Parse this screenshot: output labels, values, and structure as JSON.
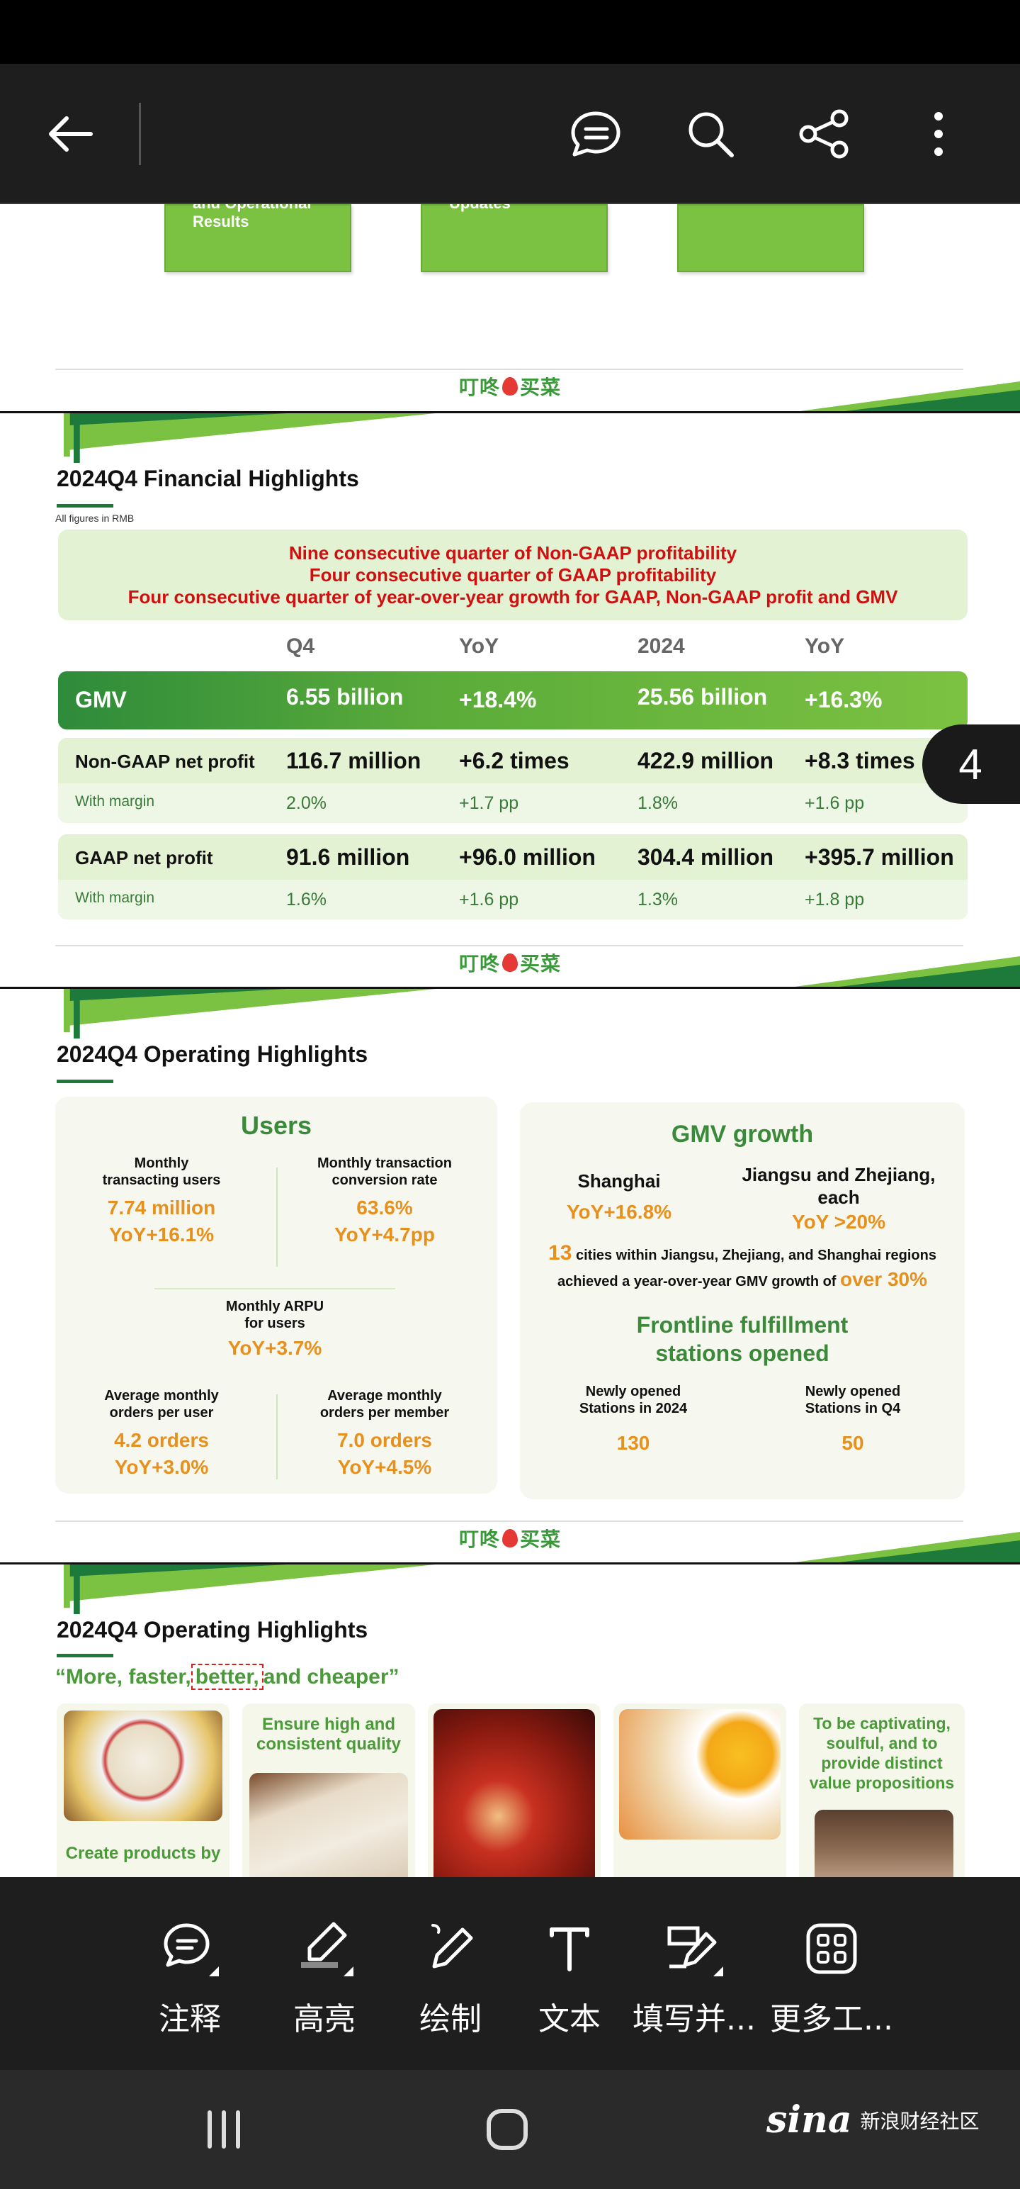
{
  "toolbar": {
    "back_icon": "arrow-left-icon",
    "comment_icon": "comment-icon",
    "search_icon": "search-icon",
    "share_icon": "share-icon",
    "more_icon": "more-vertical-icon"
  },
  "slide1": {
    "boxes": [
      "and Operational Results",
      "Updates",
      ""
    ]
  },
  "brand": {
    "logo_text_left": "叮咚",
    "logo_text_right": "买菜"
  },
  "slide2": {
    "title": "2024Q4 Financial Highlights",
    "note": "All figures in RMB",
    "banner": [
      "Nine consecutive quarter of Non-GAAP profitability",
      "Four consecutive quarter of GAAP profitability",
      "Four consecutive quarter of year-over-year growth for GAAP, Non-GAAP profit and GMV"
    ],
    "columns": [
      "Q4",
      "YoY",
      "2024",
      "YoY"
    ],
    "gmv": {
      "label": "GMV",
      "q4": "6.55 billion",
      "yoy1": "+18.4%",
      "y2024": "25.56 billion",
      "yoy2": "+16.3%"
    },
    "nongaap": {
      "label": "Non-GAAP net profit",
      "q4": "116.7 million",
      "yoy1": "+6.2 times",
      "y2024": "422.9 million",
      "yoy2": "+8.3 times",
      "margin_label": "With margin",
      "m_q4": "2.0%",
      "m_yoy1": "+1.7 pp",
      "m_2024": "1.8%",
      "m_yoy2": "+1.6 pp"
    },
    "gaap": {
      "label": "GAAP net profit",
      "q4": "91.6 million",
      "yoy1": "+96.0 million",
      "y2024": "304.4 million",
      "yoy2": "+395.7 million",
      "margin_label": "With margin",
      "m_q4": "1.6%",
      "m_yoy1": "+1.6 pp",
      "m_2024": "1.3%",
      "m_yoy2": "+1.8 pp"
    }
  },
  "page_badge": "4",
  "slide3": {
    "title": "2024Q4 Operating Highlights",
    "users": {
      "title": "Users",
      "mtu_label_1": "Monthly",
      "mtu_label_2": "transacting users",
      "mtu_value": "7.74 million",
      "mtu_yoy": "YoY+16.1%",
      "conv_label_1": "Monthly transaction",
      "conv_label_2": "conversion rate",
      "conv_value": "63.6%",
      "conv_yoy": "YoY+4.7pp",
      "arpu_label_1": "Monthly ARPU",
      "arpu_label_2": "for users",
      "arpu_yoy": "YoY+3.7%",
      "opu_label_1": "Average monthly",
      "opu_label_2": "orders per user",
      "opu_value": "4.2 orders",
      "opu_yoy": "YoY+3.0%",
      "opm_label_1": "Average monthly",
      "opm_label_2": "orders per member",
      "opm_value": "7.0 orders",
      "opm_yoy": "YoY+4.5%"
    },
    "gmv": {
      "title": "GMV growth",
      "sh_label": "Shanghai",
      "sh_value": "YoY+16.8%",
      "jz_label_1": "Jiangsu and Zhejiang,",
      "jz_label_2": "each",
      "jz_value": "YoY >20%",
      "cities_num": "13",
      "cities_text_1": "cities within Jiangsu, Zhejiang, and Shanghai regions",
      "cities_text_2": "achieved a year-over-year GMV growth of",
      "cities_highlight": "over 30%",
      "stations_title_1": "Frontline fulfillment",
      "stations_title_2": "stations opened",
      "s2024_label_1": "Newly opened",
      "s2024_label_2": "Stations in 2024",
      "s2024_value": "130",
      "sq4_label_1": "Newly opened",
      "sq4_label_2": "Stations in Q4",
      "sq4_value": "50"
    }
  },
  "slide4": {
    "title": "2024Q4 Operating Highlights",
    "quote_pre": "“More, faster,",
    "quote_boxed": "better,",
    "quote_post": "and cheaper”",
    "card1_text": "Create products by",
    "card2_text_1": "Ensure high and",
    "card2_text_2": "consistent quality",
    "card5_text_1": "To be captivating,",
    "card5_text_2": "soulful, and to",
    "card5_text_3": "provide distinct",
    "card5_text_4": "value propositions"
  },
  "bottom_tools": [
    {
      "label": "注释",
      "icon": "annotate-icon"
    },
    {
      "label": "高亮",
      "icon": "highlight-icon"
    },
    {
      "label": "绘制",
      "icon": "draw-icon"
    },
    {
      "label": "文本",
      "icon": "text-icon"
    },
    {
      "label": "填写并...",
      "icon": "fill-sign-icon"
    },
    {
      "label": "更多工...",
      "icon": "more-tools-icon"
    }
  ],
  "watermark": {
    "logo": "sina",
    "text": "新浪财经社区"
  },
  "colors": {
    "green": "#7cc242",
    "dark_green": "#1d7a3a",
    "orange": "#e8901e",
    "red": "#d01010"
  }
}
